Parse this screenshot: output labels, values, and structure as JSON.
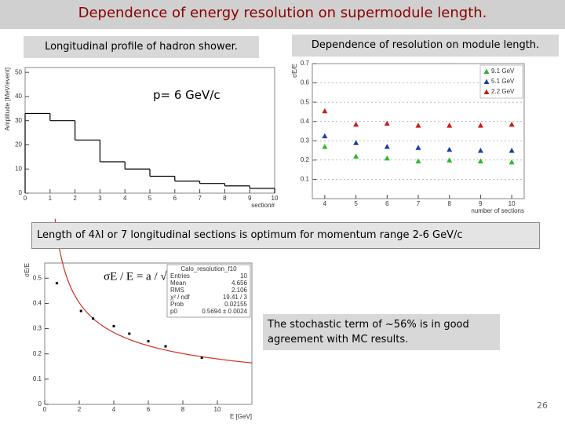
{
  "title": "Dependence of energy resolution on supermodule length.",
  "subtitle_left": "Longitudinal profile of hadron shower.",
  "subtitle_right": "Dependence of resolution on module length.",
  "annotation": "p= 6 GeV/c",
  "conclusion": "Length of 4λI or 7 longitudinal sections is optimum for momentum range 2-6 GeV/c",
  "note": "The stochastic term of ~56% is in good agreement with MC results.",
  "page_number": "26",
  "chart_data": [
    {
      "type": "histogram",
      "ylabel": "Amplitude [MeV/event]",
      "xlabel": "section#",
      "bins": [
        0,
        1,
        2,
        3,
        4,
        5,
        6,
        7,
        8,
        9,
        10
      ],
      "values": [
        33,
        30,
        22,
        13,
        10,
        7,
        5,
        4,
        3,
        2
      ],
      "color": "#000000",
      "xlim": [
        0,
        10
      ],
      "xticks": [
        0,
        1,
        2,
        3,
        4,
        5,
        6,
        7,
        8,
        9,
        10
      ],
      "ylim": [
        0,
        52
      ],
      "yticks": [
        0,
        10,
        20,
        30,
        40,
        50
      ],
      "grid": false
    },
    {
      "type": "scatter",
      "ylabel": "σE/E",
      "xlabel": "number of sections",
      "x": [
        4,
        5,
        6,
        7,
        8,
        9,
        10
      ],
      "series": [
        {
          "name": "9.1 GeV",
          "color": "#2eb82e",
          "values": [
            0.27,
            0.22,
            0.21,
            0.195,
            0.2,
            0.195,
            0.19
          ]
        },
        {
          "name": "5.1 GeV",
          "color": "#1f3fa8",
          "values": [
            0.325,
            0.29,
            0.27,
            0.265,
            0.255,
            0.25,
            0.25
          ]
        },
        {
          "name": "2.2 GeV",
          "color": "#c81e1e",
          "values": [
            0.455,
            0.385,
            0.39,
            0.38,
            0.38,
            0.38,
            0.385
          ]
        }
      ],
      "xlim": [
        3.6,
        10.4
      ],
      "xticks": [
        4,
        5,
        6,
        7,
        8,
        9,
        10
      ],
      "ylim": [
        0,
        0.7
      ],
      "yticks": [
        0.1,
        0.2,
        0.3,
        0.4,
        0.5,
        0.6,
        0.7
      ],
      "grid": true,
      "legend": "top-right"
    },
    {
      "type": "scatter",
      "ylabel": "σE/E",
      "xlabel": "E [GeV]",
      "x": [
        0.7,
        2.1,
        2.8,
        4,
        4.9,
        6,
        7,
        9.1
      ],
      "values": [
        0.48,
        0.37,
        0.34,
        0.31,
        0.28,
        0.25,
        0.23,
        0.185
      ],
      "color": "#000000",
      "fit_p0": 0.5694,
      "fit_color": "#d03020",
      "formula": "σE / E = a / √E",
      "stats": {
        "title": "Calo_resolution_f10",
        "rows": [
          [
            "Entries",
            "10"
          ],
          [
            "Mean",
            "4.656"
          ],
          [
            "RMS",
            "2.106"
          ],
          [
            "χ² / ndf",
            "19.41 / 3"
          ],
          [
            "Prob",
            "0.02155"
          ],
          [
            "p0",
            "0.5694 ± 0.0024"
          ]
        ]
      },
      "xlim": [
        0,
        12
      ],
      "xticks": [
        0,
        2,
        4,
        6,
        8,
        10
      ],
      "ylim": [
        0,
        0.56
      ],
      "yticks": [
        0,
        0.1,
        0.2,
        0.3,
        0.4,
        0.5
      ],
      "grid": false
    }
  ]
}
